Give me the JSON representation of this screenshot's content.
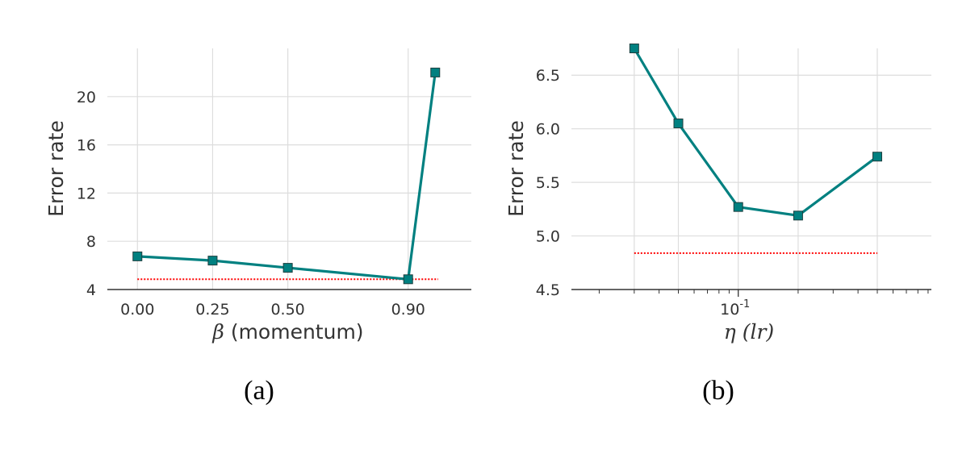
{
  "chart_data": [
    {
      "type": "line",
      "caption": "(a)",
      "ylabel": "Error rate",
      "xlabel_symbol": "β",
      "xlabel_text": " (momentum)",
      "x": [
        0.0,
        0.25,
        0.5,
        0.9,
        0.99
      ],
      "x_ticks": [
        0.0,
        0.25,
        0.5,
        0.9
      ],
      "x_tick_labels": [
        "0.00",
        "0.25",
        "0.50",
        "0.90"
      ],
      "y_ticks": [
        4,
        8,
        12,
        16,
        20
      ],
      "y_tick_labels": [
        "4",
        "8",
        "12",
        "16",
        "20"
      ],
      "xlim": [
        -0.1,
        1.11
      ],
      "ylim": [
        4,
        24
      ],
      "grid": true,
      "series": [
        {
          "values": [
            6.75,
            6.4,
            5.8,
            4.85,
            22.0
          ],
          "color": "#008080",
          "marker": "square",
          "style": "solid"
        }
      ],
      "baseline": {
        "value": 4.85,
        "x_range": [
          0.0,
          1.0
        ],
        "color": "#ff0000",
        "style": "dotted"
      }
    },
    {
      "type": "line",
      "caption": "(b)",
      "ylabel": "Error rate",
      "xlabel_symbol": "η",
      "xlabel_text": " (lr)",
      "xscale": "log",
      "x": [
        0.03,
        0.05,
        0.1,
        0.2,
        0.5
      ],
      "x_ticks": [
        0.1
      ],
      "x_tick_labels_base": "10",
      "x_tick_labels_exp": "-1",
      "minor_x_ticks": [
        0.02,
        0.03,
        0.04,
        0.05,
        0.06,
        0.07,
        0.08,
        0.09,
        0.2,
        0.3,
        0.4,
        0.5,
        0.6,
        0.7,
        0.8,
        0.9
      ],
      "grid_x": [
        0.03,
        0.05,
        0.1,
        0.2,
        0.5
      ],
      "y_ticks": [
        4.5,
        5.0,
        5.5,
        6.0,
        6.5
      ],
      "y_tick_labels": [
        "4.5",
        "5.0",
        "5.5",
        "6.0",
        "6.5"
      ],
      "xlim": [
        0.0145,
        0.935
      ],
      "ylim": [
        4.5,
        6.75
      ],
      "grid": true,
      "series": [
        {
          "values": [
            6.75,
            6.05,
            5.27,
            5.19,
            5.74
          ],
          "color": "#008080",
          "marker": "square",
          "style": "solid"
        }
      ],
      "baseline": {
        "value": 4.84,
        "x_range": [
          0.03,
          0.5
        ],
        "color": "#ff0000",
        "style": "dotted"
      }
    }
  ]
}
